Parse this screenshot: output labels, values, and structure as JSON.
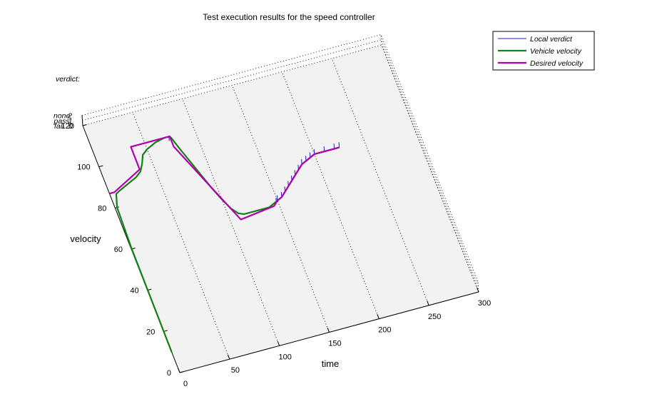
{
  "chart_data": {
    "type": "line",
    "title": "Test execution results for the speed controller",
    "xlabel": "time",
    "ylabel": "velocity",
    "zlabel": "verdict:",
    "xlim": [
      0,
      300
    ],
    "ylim": [
      0,
      120
    ],
    "x_ticks": [
      "0",
      "50",
      "100",
      "150",
      "200",
      "250",
      "300"
    ],
    "y_ticks": [
      "0",
      "20",
      "40",
      "60",
      "80",
      "100",
      "120"
    ],
    "verdict_ticks": [
      {
        "label": "none",
        "value": "2"
      },
      {
        "label": "pass",
        "value": "1"
      },
      {
        "label": "fail",
        "value": "0"
      }
    ],
    "grid": true,
    "legend_position": "top-right",
    "series": [
      {
        "name": "Local verdict",
        "color": "#2020c0",
        "baseline": 1,
        "spikes": [
          {
            "x": 73,
            "y": 103,
            "verdict": 0
          },
          {
            "x": 148,
            "y": 63,
            "verdict": 0
          },
          {
            "x": 150,
            "y": 64,
            "verdict": 0
          },
          {
            "x": 155,
            "y": 65,
            "verdict": 0
          },
          {
            "x": 160,
            "y": 67,
            "verdict": 0
          },
          {
            "x": 165,
            "y": 69,
            "verdict": 0
          },
          {
            "x": 170,
            "y": 71,
            "verdict": 0
          },
          {
            "x": 175,
            "y": 73,
            "verdict": 0
          },
          {
            "x": 180,
            "y": 75,
            "verdict": 0
          },
          {
            "x": 185,
            "y": 77,
            "verdict": 0
          },
          {
            "x": 190,
            "y": 78,
            "verdict": 0
          },
          {
            "x": 195,
            "y": 79,
            "verdict": 0
          },
          {
            "x": 200,
            "y": 80,
            "verdict": 0
          },
          {
            "x": 210,
            "y": 80,
            "verdict": 0
          },
          {
            "x": 220,
            "y": 80,
            "verdict": 0
          },
          {
            "x": 225,
            "y": 80,
            "verdict": 0
          }
        ]
      },
      {
        "name": "Vehicle velocity",
        "color": "#128012",
        "x": [
          0,
          0.5,
          2,
          6,
          10,
          20,
          30,
          36,
          40,
          44,
          50,
          60,
          70,
          75,
          76,
          80,
          85,
          90,
          95,
          100,
          105,
          110,
          115,
          120,
          125,
          130,
          135,
          140,
          145,
          150,
          155,
          160,
          165,
          170,
          175,
          180,
          185,
          190,
          195,
          200,
          210,
          220,
          225
        ],
        "y": [
          10,
          60,
          80,
          86,
          87,
          89,
          91,
          93,
          96,
          100,
          102,
          104,
          105,
          105,
          104,
          98,
          91,
          84,
          77,
          71,
          66,
          63,
          62,
          62,
          62,
          62,
          62,
          62,
          63,
          64,
          65,
          67,
          69,
          71,
          73,
          75,
          77,
          78,
          79,
          80,
          80,
          80,
          80
        ]
      },
      {
        "name": "Desired velocity",
        "color": "#b000b0",
        "x": [
          0,
          5,
          36,
          36.1,
          75,
          75.1,
          110,
          145,
          150,
          155,
          160,
          165,
          170,
          175,
          180,
          185,
          190,
          195,
          200,
          210,
          220,
          225
        ],
        "y": [
          87,
          87,
          94,
          105,
          105,
          100,
          60,
          62,
          64,
          65,
          67,
          69,
          71,
          73,
          75,
          77,
          78,
          79,
          80,
          80,
          80,
          80
        ]
      }
    ]
  }
}
